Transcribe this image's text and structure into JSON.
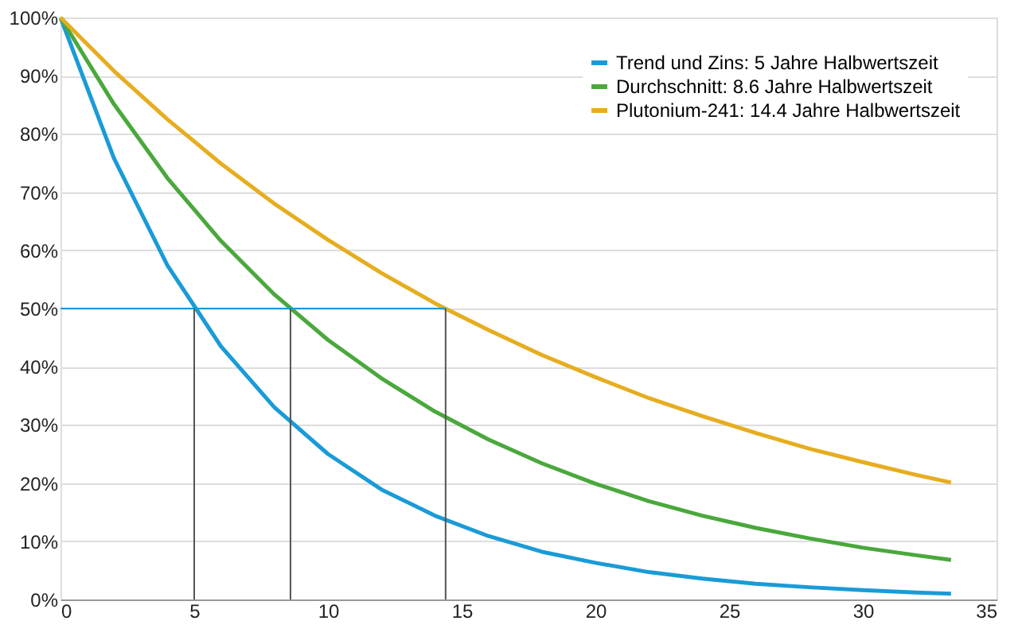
{
  "chart_data": {
    "type": "line",
    "x": [
      0,
      2,
      4,
      6,
      8,
      10,
      12,
      14,
      16,
      18,
      20,
      22,
      24,
      26,
      28,
      30,
      32,
      33.3
    ],
    "series": [
      {
        "name": "Trend und Zins: 5 Jahre Halbwertszeit",
        "color": "#1a9bd7",
        "values": [
          100,
          75.8,
          57.4,
          43.5,
          33.0,
          25.0,
          18.9,
          14.4,
          10.9,
          8.2,
          6.3,
          4.7,
          3.6,
          2.7,
          2.1,
          1.6,
          1.2,
          1.0
        ]
      },
      {
        "name": "Durchschnitt: 8.6 Jahre Halbwertszeit",
        "color": "#4aa83c",
        "values": [
          100,
          85.1,
          72.4,
          61.6,
          52.4,
          44.6,
          38.0,
          32.3,
          27.5,
          23.4,
          19.9,
          16.9,
          14.4,
          12.3,
          10.5,
          8.9,
          7.6,
          6.8
        ]
      },
      {
        "name": "Plutonium-241: 14.4 Jahre Halbwertszeit",
        "color": "#e6ad1f",
        "values": [
          100,
          90.8,
          82.5,
          74.9,
          68.0,
          61.8,
          56.1,
          50.9,
          46.3,
          42.0,
          38.2,
          34.6,
          31.5,
          28.6,
          25.9,
          23.6,
          21.4,
          20.1
        ]
      }
    ],
    "xlim": [
      0,
      35
    ],
    "xticks": [
      0,
      5,
      10,
      15,
      20,
      25,
      30,
      35
    ],
    "ylim": [
      0,
      100
    ],
    "yticks": [
      {
        "value": 0,
        "label": "0%"
      },
      {
        "value": 10,
        "label": "10%"
      },
      {
        "value": 20,
        "label": "20%"
      },
      {
        "value": 30,
        "label": "30%"
      },
      {
        "value": 40,
        "label": "40%"
      },
      {
        "value": 50,
        "label": "50%"
      },
      {
        "value": 60,
        "label": "60%"
      },
      {
        "value": 70,
        "label": "70%"
      },
      {
        "value": 80,
        "label": "80%"
      },
      {
        "value": 90,
        "label": "90%"
      },
      {
        "value": 100,
        "label": "100%"
      }
    ],
    "ref_lines": [
      {
        "axis": "y",
        "value": 50,
        "color": "#1a9bd7"
      },
      {
        "axis": "x",
        "value": 5,
        "color": "#555555"
      },
      {
        "axis": "x",
        "value": 8.6,
        "color": "#555555"
      },
      {
        "axis": "x",
        "value": 14.4,
        "color": "#555555"
      }
    ],
    "grid": "y",
    "legend": "top right",
    "marker": "none",
    "line_style": "solid"
  }
}
